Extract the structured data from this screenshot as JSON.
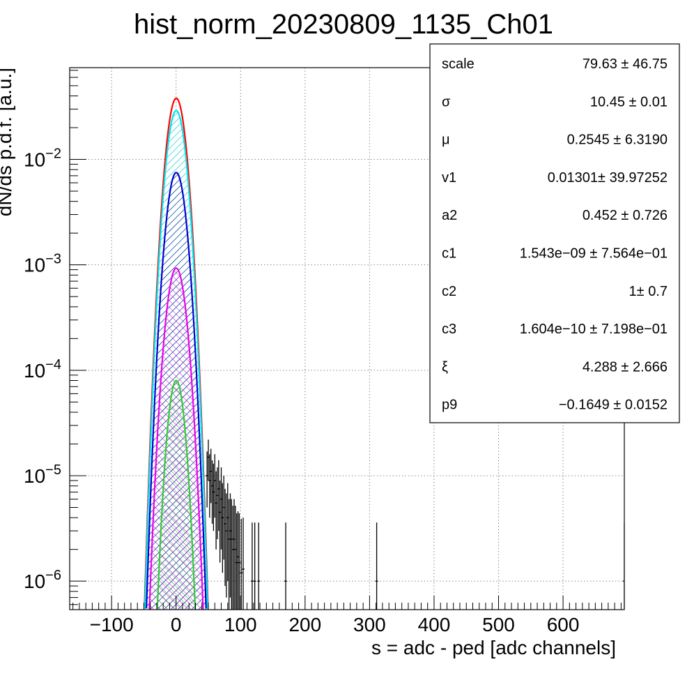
{
  "chart_data": {
    "type": "line",
    "title": "hist_norm_20230809_1135_Ch01",
    "xlabel": "s = adc - ped [adc channels]",
    "ylabel": "dN/ds p.d.f. [a.u.]",
    "xlim": [
      -165,
      695
    ],
    "ylim_log10": [
      -6.27,
      -1.13
    ],
    "yscale": "log",
    "grid": true,
    "x_ticks": [
      {
        "value": -100,
        "label": "−100"
      },
      {
        "value": 0,
        "label": "0"
      },
      {
        "value": 100,
        "label": "100"
      },
      {
        "value": 200,
        "label": "200"
      },
      {
        "value": 300,
        "label": "300"
      },
      {
        "value": 400,
        "label": "400"
      },
      {
        "value": 500,
        "label": "500"
      },
      {
        "value": 600,
        "label": "600"
      }
    ],
    "y_ticks": [
      {
        "exp": -2,
        "base": "10",
        "label": "−2"
      },
      {
        "exp": -3,
        "base": "10",
        "label": "−3"
      },
      {
        "exp": -4,
        "base": "10",
        "label": "−4"
      },
      {
        "exp": -5,
        "base": "10",
        "label": "−5"
      },
      {
        "exp": -6,
        "base": "10",
        "label": "−6"
      }
    ],
    "gaussian_curves": [
      {
        "color": "#ff0000",
        "peak": 0.038,
        "mu": 0.25,
        "sigma": 10.45,
        "hatch": false,
        "order": 1
      },
      {
        "color": "#00e5ee",
        "peak": 0.029,
        "mu": 0.25,
        "sigma": 10.45,
        "hatch": true,
        "order": 2
      },
      {
        "color": "#0000cc",
        "peak": 0.0075,
        "mu": 0.25,
        "sigma": 10.6,
        "hatch": true,
        "order": 3
      },
      {
        "color": "#ee00ee",
        "peak": 0.00093,
        "mu": 0.25,
        "sigma": 10.8,
        "hatch": true,
        "order": 4
      },
      {
        "color": "#33cc33",
        "peak": 8e-05,
        "mu": 0.25,
        "sigma": 9.3,
        "hatch": true,
        "order": 5
      }
    ],
    "data_errorbars": [
      {
        "x": 48,
        "y": 1e-05,
        "lo": 5e-06,
        "hi": 1.7e-05
      },
      {
        "x": 50,
        "y": 1.5e-05,
        "lo": 9e-06,
        "hi": 2.2e-05
      },
      {
        "x": 52,
        "y": 9e-06,
        "lo": 4e-06,
        "hi": 1.6e-05
      },
      {
        "x": 54,
        "y": 1.1e-05,
        "lo": 5.5e-06,
        "hi": 1.8e-05
      },
      {
        "x": 56,
        "y": 8e-06,
        "lo": 3.5e-06,
        "hi": 1.4e-05
      },
      {
        "x": 58,
        "y": 7e-06,
        "lo": 3e-06,
        "hi": 1.3e-05
      },
      {
        "x": 60,
        "y": 9e-06,
        "lo": 4e-06,
        "hi": 1.6e-05
      },
      {
        "x": 62,
        "y": 5.5e-06,
        "lo": 2e-06,
        "hi": 1.1e-05
      },
      {
        "x": 64,
        "y": 6.5e-06,
        "lo": 2.5e-06,
        "hi": 1.2e-05
      },
      {
        "x": 66,
        "y": 7.5e-06,
        "lo": 3e-06,
        "hi": 1.4e-05
      },
      {
        "x": 68,
        "y": 4.5e-06,
        "lo": 1.5e-06,
        "hi": 9e-06
      },
      {
        "x": 70,
        "y": 6e-06,
        "lo": 2e-06,
        "hi": 1.2e-05
      },
      {
        "x": 72,
        "y": 4e-06,
        "lo": 1.2e-06,
        "hi": 8.5e-06
      },
      {
        "x": 74,
        "y": 5e-06,
        "lo": 1.6e-06,
        "hi": 1e-05
      },
      {
        "x": 76,
        "y": 3.5e-06,
        "lo": 9e-07,
        "hi": 7.5e-06
      },
      {
        "x": 78,
        "y": 3e-06,
        "lo": 7e-07,
        "hi": 6.8e-06
      },
      {
        "x": 80,
        "y": 4e-06,
        "lo": 1e-06,
        "hi": 8.5e-06
      },
      {
        "x": 82,
        "y": 2.5e-06,
        "lo": 5e-07,
        "hi": 6e-06
      },
      {
        "x": 84,
        "y": 3e-06,
        "lo": 7e-07,
        "hi": 6.8e-06
      },
      {
        "x": 86,
        "y": 2.5e-06,
        "lo": 5e-07,
        "hi": 6e-06
      },
      {
        "x": 88,
        "y": 2e-06,
        "lo": 4e-07,
        "hi": 5.2e-06
      },
      {
        "x": 90,
        "y": 2.5e-06,
        "lo": 5e-07,
        "hi": 6e-06
      },
      {
        "x": 92,
        "y": 2e-06,
        "lo": 4e-07,
        "hi": 5.2e-06
      },
      {
        "x": 94,
        "y": 1.5e-06,
        "lo": 3e-07,
        "hi": 4.4e-06
      },
      {
        "x": 96,
        "y": 1.7e-06,
        "lo": 3e-07,
        "hi": 4.6e-06
      },
      {
        "x": 98,
        "y": 1.5e-06,
        "lo": 3e-07,
        "hi": 4.4e-06
      },
      {
        "x": 101,
        "y": 1.2e-06,
        "lo": 2e-07,
        "hi": 3.9e-06
      },
      {
        "x": 104,
        "y": 1.3e-06,
        "lo": 2.5e-07,
        "hi": 4e-06
      },
      {
        "x": 118,
        "y": 1e-06,
        "lo": 2e-07,
        "hi": 3.6e-06
      },
      {
        "x": 122,
        "y": 1e-06,
        "lo": 2e-07,
        "hi": 3.6e-06
      },
      {
        "x": 128,
        "y": 1e-06,
        "lo": 2e-07,
        "hi": 3.6e-06
      },
      {
        "x": 170,
        "y": 1e-06,
        "lo": 2e-07,
        "hi": 3.6e-06
      },
      {
        "x": 311,
        "y": 1e-06,
        "lo": 2e-07,
        "hi": 3.6e-06
      },
      {
        "x": 695,
        "y": 1e-06,
        "lo": 2e-07,
        "hi": 3.6e-06
      }
    ],
    "stats_box": {
      "rows": [
        {
          "name": "scale",
          "value": "79.63 ± 46.75"
        },
        {
          "name": "σ",
          "value": "10.45 ± 0.01"
        },
        {
          "name": "μ",
          "value": "0.2545 ± 6.3190"
        },
        {
          "name": "v1",
          "value": "0.01301± 39.97252"
        },
        {
          "name": "a2",
          "value": "0.452 ± 0.726"
        },
        {
          "name": "c1",
          "value": "1.543e−09 ± 7.564e−01"
        },
        {
          "name": "c2",
          "value": "1± 0.7"
        },
        {
          "name": "c3",
          "value": "1.604e−10 ± 7.198e−01"
        },
        {
          "name": "ξ",
          "value": "4.288 ± 2.666"
        },
        {
          "name": "p9",
          "value": "−0.1649 ± 0.0152"
        }
      ]
    }
  }
}
